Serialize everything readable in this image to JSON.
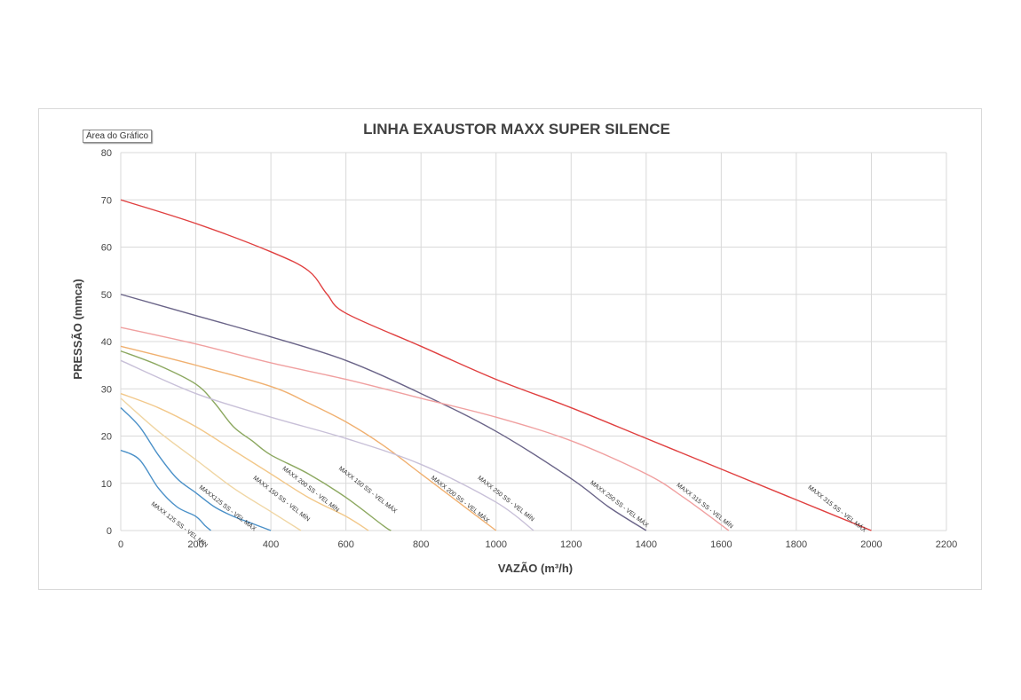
{
  "chart_data": {
    "type": "line",
    "title": "LINHA EXAUSTOR MAXX SUPER SILENCE",
    "xlabel": "VAZÃO (m³/h)",
    "ylabel": "PRESSÃO (mmca)",
    "xlim": [
      0,
      2200
    ],
    "ylim": [
      0,
      80
    ],
    "xticks": [
      0,
      200,
      400,
      600,
      800,
      1000,
      1200,
      1400,
      1600,
      1800,
      2000,
      2200
    ],
    "yticks": [
      0,
      10,
      20,
      30,
      40,
      50,
      60,
      70,
      80
    ],
    "grid": true,
    "legend": "none",
    "tooltip": "Área do Gráfico",
    "series": [
      {
        "name": "MAXX 125 SS - VEL MÍN",
        "color": "#4a90c8",
        "label_x": 80,
        "label_y": 5.5,
        "x": [
          0,
          50,
          100,
          150,
          200,
          225,
          240
        ],
        "y": [
          17,
          15,
          9,
          5,
          3,
          1,
          0
        ]
      },
      {
        "name": "MAXX125 SS - VEL MÁX",
        "color": "#4a90c8",
        "label_x": 208,
        "label_y": 9,
        "x": [
          0,
          50,
          100,
          150,
          200,
          250,
          300,
          350,
          400
        ],
        "y": [
          26,
          22,
          16,
          11,
          8,
          5,
          3,
          1.5,
          0
        ]
      },
      {
        "name": "MAXX 150 SS - VEL MÍN",
        "color": "#f0d6a4",
        "label_x": 352,
        "label_y": 11,
        "x": [
          0,
          100,
          200,
          300,
          400,
          480
        ],
        "y": [
          28,
          21,
          15,
          9,
          4,
          0
        ]
      },
      {
        "name": "MAXX 200 SS - VEL MÍN",
        "color": "#f2c88a",
        "label_x": 430,
        "label_y": 13,
        "x": [
          0,
          100,
          200,
          300,
          400,
          500,
          600,
          660
        ],
        "y": [
          29,
          26,
          22,
          17,
          12,
          7,
          3,
          0
        ]
      },
      {
        "name": "MAXX 150 SS - VEL MÁX",
        "color": "#8ca860",
        "label_x": 580,
        "label_y": 13,
        "x": [
          0,
          100,
          200,
          250,
          300,
          350,
          400,
          500,
          600,
          700,
          720
        ],
        "y": [
          38,
          35,
          31,
          27,
          22,
          19,
          16,
          12,
          7,
          1,
          0
        ]
      },
      {
        "name": "MAXX 200 SS - VEL MÁX",
        "color": "#f0b070",
        "label_x": 826,
        "label_y": 11,
        "x": [
          0,
          200,
          400,
          500,
          600,
          700,
          800,
          900,
          1000
        ],
        "y": [
          39,
          35,
          30.5,
          27,
          23,
          18,
          12,
          6,
          0
        ]
      },
      {
        "name": "MAXX 250 SS - VEL MÍN",
        "color": "#c8c0d8",
        "label_x": 950,
        "label_y": 11,
        "x": [
          0,
          200,
          400,
          600,
          800,
          1000,
          1100
        ],
        "y": [
          36,
          29,
          24,
          19.5,
          14,
          6,
          0
        ]
      },
      {
        "name": "MAXX 250 SS - VEL MÁX",
        "color": "#6a6488",
        "label_x": 1250,
        "label_y": 10,
        "x": [
          0,
          200,
          400,
          600,
          800,
          1000,
          1200,
          1300,
          1400
        ],
        "y": [
          50,
          45.5,
          41,
          36,
          29,
          21,
          11,
          5,
          0
        ]
      },
      {
        "name": "MAXX 315 SS - VEL MÍN",
        "color": "#f0a0a0",
        "label_x": 1480,
        "label_y": 9.5,
        "x": [
          0,
          200,
          400,
          600,
          800,
          1000,
          1200,
          1400,
          1500,
          1620
        ],
        "y": [
          43,
          39.5,
          35.5,
          32,
          28,
          24,
          19,
          12,
          7,
          0
        ]
      },
      {
        "name": "MAXX 315 SS - VEL MÁX",
        "color": "#e04040",
        "label_x": 1830,
        "label_y": 9,
        "x": [
          0,
          200,
          400,
          500,
          550,
          600,
          800,
          1000,
          1200,
          1400,
          1600,
          1800,
          2000
        ],
        "y": [
          70,
          65,
          59,
          55,
          50,
          46,
          39,
          32,
          26,
          19.5,
          13,
          6.5,
          0
        ]
      }
    ]
  }
}
